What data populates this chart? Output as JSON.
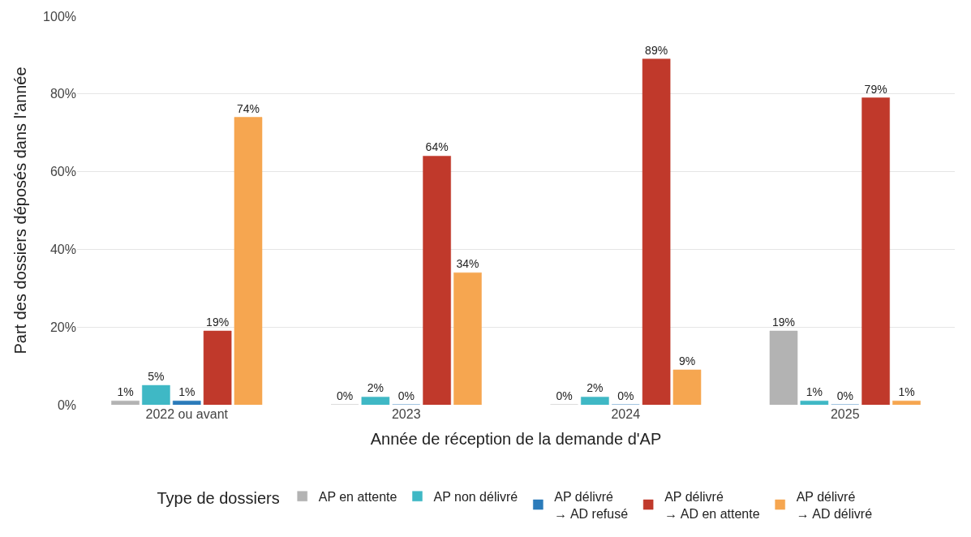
{
  "chart_data": {
    "type": "bar",
    "xlabel": "Année de réception de la demande d'AP",
    "ylabel": "Part des dossiers déposés dans l'année",
    "legend_title": "Type de dossiers",
    "legend": "bottom",
    "grid": "y",
    "categories": [
      "2022 ou avant",
      "2023",
      "2024",
      "2025"
    ],
    "ylim": [
      0,
      100
    ],
    "yticks": [
      {
        "value": 0,
        "label": "0%"
      },
      {
        "value": 20,
        "label": "20%"
      },
      {
        "value": 40,
        "label": "40%"
      },
      {
        "value": 60,
        "label": "60%"
      },
      {
        "value": 80,
        "label": "80%"
      },
      {
        "value": 100,
        "label": "100%"
      }
    ],
    "series": [
      {
        "name": "AP en attente",
        "color": "#b3b3b3",
        "values": [
          1,
          0,
          0,
          19
        ],
        "value_labels": [
          "1%",
          "0%",
          "0%",
          "19%"
        ]
      },
      {
        "name": "AP non délivré",
        "color": "#3fb8c5",
        "values": [
          5,
          2,
          2,
          1
        ],
        "value_labels": [
          "5%",
          "2%",
          "2%",
          "1%"
        ]
      },
      {
        "name": "AP délivré\n→ AD refusé",
        "color": "#2b7bba",
        "values": [
          1,
          0,
          0,
          0
        ],
        "value_labels": [
          "1%",
          "0%",
          "0%",
          "0%"
        ]
      },
      {
        "name": "AP délivré\n→ AD en attente",
        "color": "#c0392b",
        "values": [
          19,
          64,
          89,
          79
        ],
        "value_labels": [
          "19%",
          "64%",
          "89%",
          "79%"
        ]
      },
      {
        "name": "AP délivré\n→ AD délivré",
        "color": "#f6a650",
        "values": [
          74,
          34,
          9,
          1
        ],
        "value_labels": [
          "74%",
          "34%",
          "9%",
          "1%"
        ]
      }
    ]
  }
}
